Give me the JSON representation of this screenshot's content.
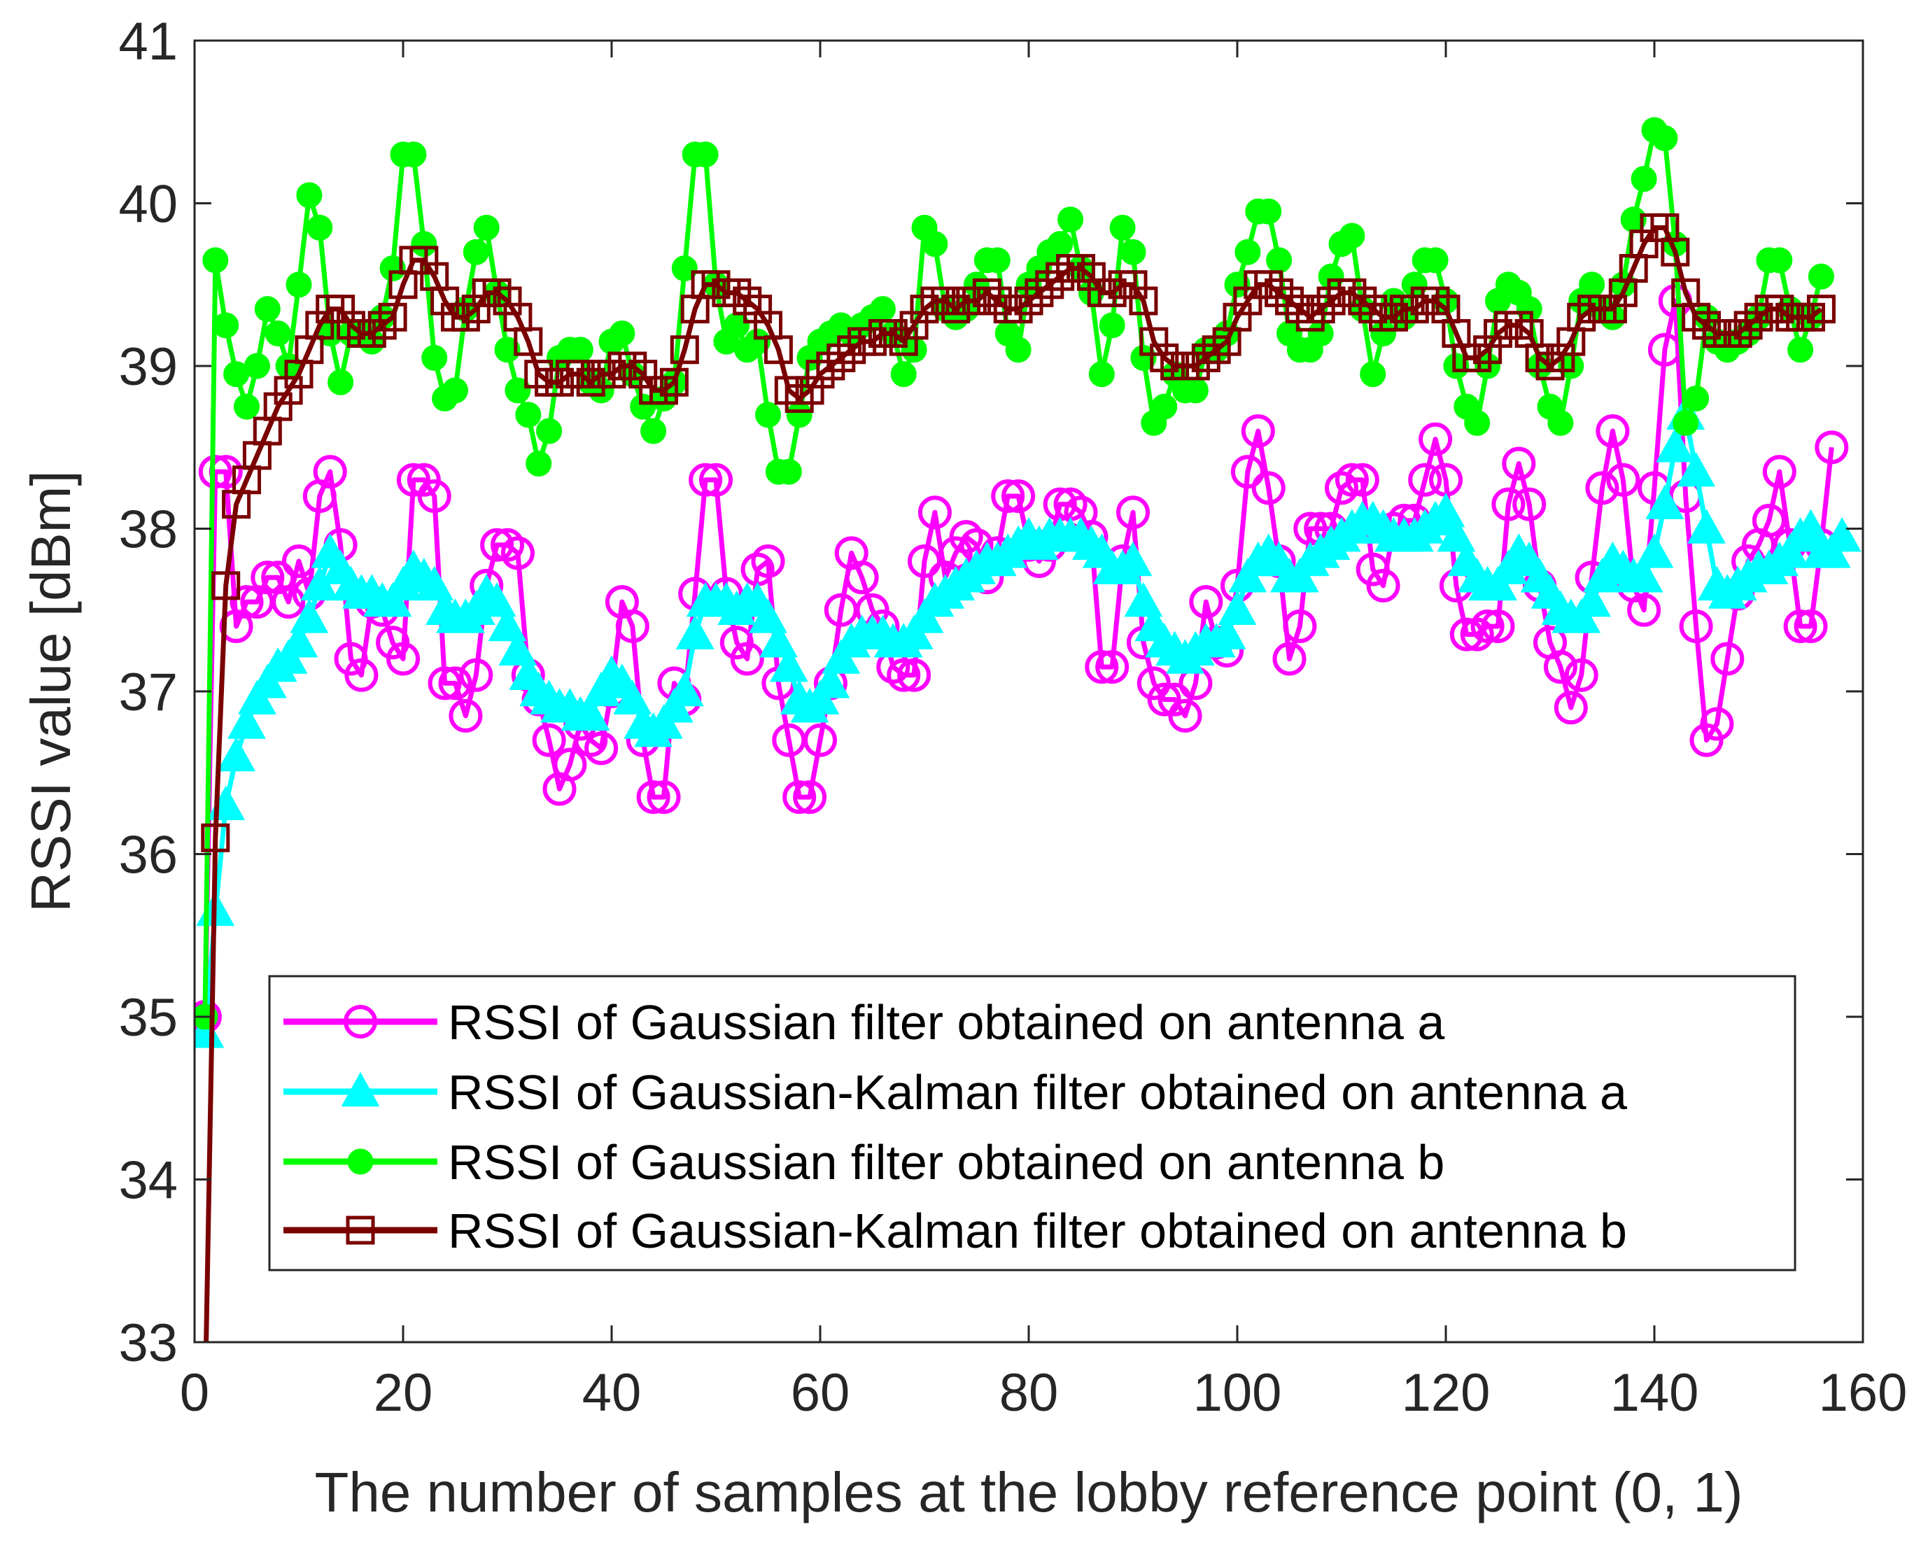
{
  "chart_data": {
    "type": "line",
    "title": "",
    "xlabel": "The number of samples at the lobby reference point (0, 1)",
    "ylabel": "RSSI value [dBm]",
    "xlim": [
      0,
      160
    ],
    "ylim": [
      33,
      41
    ],
    "xticks": [
      0,
      20,
      40,
      60,
      80,
      100,
      120,
      140,
      160
    ],
    "yticks": [
      33,
      34,
      35,
      36,
      37,
      38,
      39,
      40,
      41
    ],
    "grid": false,
    "legend_position": "lower-center",
    "series": [
      {
        "name": "RSSI of Gaussian filter obtained on antenna a",
        "color": "#ff00ff",
        "marker": "circle",
        "values": [
          35.0,
          38.35,
          38.35,
          37.4,
          37.55,
          37.55,
          37.7,
          37.7,
          37.55,
          37.8,
          37.6,
          38.2,
          38.35,
          37.9,
          37.2,
          37.1,
          37.55,
          37.5,
          37.3,
          37.2,
          38.3,
          38.3,
          38.2,
          37.05,
          37.05,
          36.85,
          37.1,
          37.65,
          37.9,
          37.9,
          37.85,
          37.1,
          36.95,
          36.7,
          36.4,
          36.55,
          36.8,
          36.7,
          36.65,
          37.0,
          37.55,
          37.4,
          36.7,
          36.35,
          36.35,
          37.05,
          36.95,
          37.6,
          38.3,
          38.3,
          37.6,
          37.3,
          37.2,
          37.75,
          37.8,
          37.05,
          36.7,
          36.35,
          36.35,
          36.7,
          37.05,
          37.5,
          37.85,
          37.7,
          37.5,
          37.4,
          37.15,
          37.1,
          37.1,
          37.8,
          38.1,
          37.7,
          37.85,
          37.95,
          37.9,
          37.7,
          37.85,
          38.2,
          38.2,
          37.9,
          37.8,
          37.9,
          38.15,
          38.15,
          38.1,
          37.95,
          37.15,
          37.15,
          37.8,
          38.1,
          37.3,
          37.05,
          36.95,
          36.95,
          36.85,
          37.05,
          37.55,
          37.3,
          37.25,
          37.65,
          38.35,
          38.6,
          38.25,
          37.8,
          37.2,
          37.4,
          38.0,
          38.0,
          38.0,
          38.25,
          38.3,
          38.3,
          37.75,
          37.65,
          38.0,
          38.05,
          38.05,
          38.3,
          38.55,
          38.3,
          37.65,
          37.35,
          37.35,
          37.4,
          37.4,
          38.15,
          38.4,
          38.15,
          37.65,
          37.3,
          37.15,
          36.9,
          37.1,
          37.7,
          38.25,
          38.6,
          38.3,
          37.65,
          37.5,
          38.25,
          39.1,
          39.4,
          38.2,
          37.4,
          36.7,
          36.8,
          37.2,
          37.6,
          37.8,
          37.9,
          38.05,
          38.35,
          37.9,
          37.4,
          37.4,
          37.9,
          38.5
        ]
      },
      {
        "name": "RSSI of Gaussian-Kalman filter obtained on antenna a",
        "color": "#00ffff",
        "marker": "triangle",
        "values": [
          34.9,
          35.65,
          36.3,
          36.6,
          36.8,
          36.95,
          37.05,
          37.15,
          37.2,
          37.3,
          37.45,
          37.65,
          37.85,
          37.75,
          37.65,
          37.6,
          37.6,
          37.55,
          37.55,
          37.65,
          37.75,
          37.7,
          37.65,
          37.5,
          37.45,
          37.45,
          37.5,
          37.6,
          37.55,
          37.4,
          37.25,
          37.1,
          37.0,
          36.95,
          36.9,
          36.9,
          36.85,
          36.85,
          37.0,
          37.1,
          37.05,
          36.95,
          36.8,
          36.75,
          36.8,
          36.9,
          37.0,
          37.35,
          37.55,
          37.55,
          37.55,
          37.5,
          37.55,
          37.55,
          37.45,
          37.3,
          37.15,
          36.95,
          36.9,
          36.95,
          37.05,
          37.2,
          37.3,
          37.35,
          37.35,
          37.35,
          37.3,
          37.3,
          37.35,
          37.45,
          37.55,
          37.6,
          37.65,
          37.7,
          37.75,
          37.8,
          37.8,
          37.85,
          37.9,
          37.95,
          37.9,
          37.95,
          37.95,
          37.95,
          37.95,
          37.9,
          37.85,
          37.75,
          37.75,
          37.8,
          37.55,
          37.4,
          37.3,
          37.25,
          37.2,
          37.25,
          37.3,
          37.3,
          37.35,
          37.5,
          37.7,
          37.8,
          37.85,
          37.8,
          37.7,
          37.7,
          37.8,
          37.85,
          37.9,
          37.95,
          38.0,
          38.05,
          38.05,
          38.0,
          37.95,
          37.95,
          37.95,
          38.0,
          38.05,
          38.1,
          37.95,
          37.8,
          37.7,
          37.65,
          37.65,
          37.75,
          37.85,
          37.8,
          37.7,
          37.6,
          37.5,
          37.45,
          37.45,
          37.55,
          37.7,
          37.8,
          37.75,
          37.7,
          37.7,
          37.85,
          38.15,
          38.5,
          38.7,
          38.35,
          38.0,
          37.65,
          37.6,
          37.65,
          37.7,
          37.75,
          37.75,
          37.8,
          37.85,
          37.95,
          38.0,
          37.85,
          37.85,
          37.95
        ]
      },
      {
        "name": "RSSI of Gaussian filter obtained on antenna b",
        "color": "#00ff00",
        "marker": "filled-circle",
        "values": [
          35.0,
          39.65,
          39.25,
          38.95,
          38.75,
          39.0,
          39.35,
          39.2,
          39.0,
          39.5,
          40.05,
          39.85,
          39.2,
          38.9,
          39.2,
          39.2,
          39.15,
          39.3,
          39.6,
          40.3,
          40.3,
          39.75,
          39.05,
          38.8,
          38.85,
          39.35,
          39.7,
          39.85,
          39.45,
          39.1,
          38.85,
          38.7,
          38.4,
          38.6,
          39.05,
          39.1,
          39.1,
          38.9,
          38.85,
          39.15,
          39.2,
          38.95,
          38.75,
          38.6,
          38.8,
          38.9,
          39.6,
          40.3,
          40.3,
          39.5,
          39.15,
          39.25,
          39.1,
          39.15,
          38.7,
          38.35,
          38.35,
          38.7,
          39.05,
          39.15,
          39.2,
          39.25,
          39.2,
          39.25,
          39.3,
          39.35,
          39.2,
          38.95,
          39.1,
          39.85,
          39.75,
          39.35,
          39.3,
          39.35,
          39.5,
          39.65,
          39.65,
          39.2,
          39.1,
          39.5,
          39.6,
          39.7,
          39.75,
          39.9,
          39.6,
          39.45,
          38.95,
          39.25,
          39.85,
          39.7,
          39.05,
          38.65,
          38.75,
          38.95,
          38.85,
          38.85,
          39.1,
          39.1,
          39.2,
          39.5,
          39.7,
          39.95,
          39.95,
          39.65,
          39.2,
          39.1,
          39.1,
          39.2,
          39.55,
          39.75,
          39.8,
          39.35,
          38.95,
          39.2,
          39.4,
          39.3,
          39.5,
          39.65,
          39.65,
          39.4,
          39.0,
          38.75,
          38.65,
          39.0,
          39.4,
          39.5,
          39.45,
          39.35,
          39.0,
          38.75,
          38.65,
          39.0,
          39.4,
          39.5,
          39.35,
          39.3,
          39.5,
          39.9,
          40.15,
          40.45,
          40.4,
          39.75,
          38.65,
          38.8,
          39.3,
          39.15,
          39.1,
          39.15,
          39.2,
          39.3,
          39.65,
          39.65,
          39.35,
          39.1,
          39.3,
          39.55
        ]
      },
      {
        "name": "RSSI of Gaussian-Kalman filter obtained on antenna b",
        "color": "#7a0000",
        "marker": "square",
        "values": [
          32.6,
          36.1,
          37.65,
          38.15,
          38.3,
          38.45,
          38.6,
          38.75,
          38.85,
          38.95,
          39.1,
          39.25,
          39.35,
          39.35,
          39.25,
          39.2,
          39.2,
          39.25,
          39.3,
          39.5,
          39.65,
          39.65,
          39.55,
          39.4,
          39.3,
          39.3,
          39.35,
          39.45,
          39.45,
          39.4,
          39.3,
          39.15,
          38.95,
          38.9,
          38.9,
          38.95,
          38.95,
          38.9,
          38.95,
          38.95,
          39.0,
          39.0,
          38.95,
          38.85,
          38.85,
          38.9,
          39.1,
          39.35,
          39.5,
          39.5,
          39.45,
          39.45,
          39.4,
          39.35,
          39.25,
          39.1,
          38.85,
          38.8,
          38.85,
          38.95,
          39.0,
          39.05,
          39.1,
          39.15,
          39.15,
          39.2,
          39.2,
          39.15,
          39.25,
          39.35,
          39.4,
          39.4,
          39.35,
          39.4,
          39.4,
          39.45,
          39.4,
          39.35,
          39.35,
          39.4,
          39.45,
          39.5,
          39.55,
          39.6,
          39.6,
          39.55,
          39.45,
          39.45,
          39.5,
          39.5,
          39.4,
          39.15,
          39.05,
          39.0,
          39.0,
          39.0,
          39.05,
          39.1,
          39.15,
          39.3,
          39.4,
          39.5,
          39.5,
          39.45,
          39.4,
          39.35,
          39.3,
          39.35,
          39.4,
          39.45,
          39.45,
          39.4,
          39.35,
          39.3,
          39.3,
          39.35,
          39.35,
          39.4,
          39.4,
          39.35,
          39.2,
          39.05,
          39.05,
          39.1,
          39.2,
          39.25,
          39.25,
          39.2,
          39.05,
          39.0,
          39.05,
          39.15,
          39.3,
          39.35,
          39.35,
          39.35,
          39.45,
          39.6,
          39.75,
          39.85,
          39.85,
          39.7,
          39.45,
          39.3,
          39.25,
          39.2,
          39.2,
          39.2,
          39.25,
          39.3,
          39.35,
          39.35,
          39.3,
          39.3,
          39.3,
          39.35
        ]
      }
    ]
  }
}
